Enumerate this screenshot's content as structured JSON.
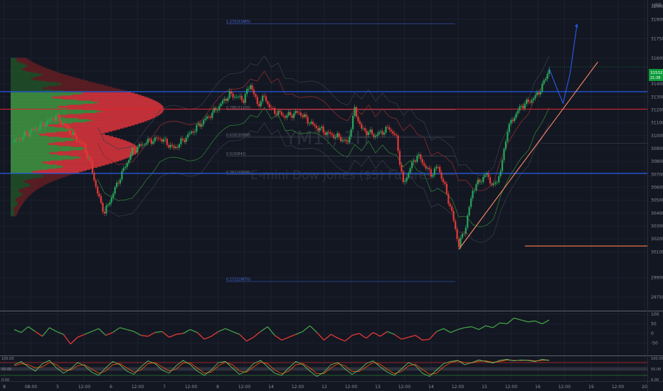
{
  "chart_data": {
    "type": "line",
    "title": "",
    "currency": "USD",
    "watermark": {
      "symbol": "YM1!, 1H",
      "name": "E-mini Dow Jones ($5) Futures"
    },
    "last_price": {
      "value": "31532",
      "countdown": "21:38"
    },
    "price_axis": {
      "range": [
        29650,
        32050
      ],
      "ticks": [
        {
          "v": 29750,
          "label": "29750"
        },
        {
          "v": 29900,
          "label": "29900"
        },
        {
          "v": 30100,
          "label": "30100"
        },
        {
          "v": 30200,
          "label": "30200"
        },
        {
          "v": 30300,
          "label": "30300"
        },
        {
          "v": 30400,
          "label": "30400"
        },
        {
          "v": 30500,
          "label": "30500"
        },
        {
          "v": 30600,
          "label": "30600"
        },
        {
          "v": 30700,
          "label": "30700"
        },
        {
          "v": 30800,
          "label": "30800"
        },
        {
          "v": 30900,
          "label": "30900"
        },
        {
          "v": 31000,
          "label": "31000"
        },
        {
          "v": 31100,
          "label": "31100"
        },
        {
          "v": 31200,
          "label": "31200"
        },
        {
          "v": 31300,
          "label": "31300"
        },
        {
          "v": 31400,
          "label": "31400"
        },
        {
          "v": 31500,
          "label": "31500"
        },
        {
          "v": 31600,
          "label": "31600"
        },
        {
          "v": 31750,
          "label": "31750"
        },
        {
          "v": 31900,
          "label": "31900"
        },
        {
          "v": 32000,
          "label": "32000"
        }
      ]
    },
    "time_axis": [
      "8",
      "08:00",
      "5",
      "12:00",
      "6",
      "12:00",
      "7",
      "12:00",
      "8",
      "12:00",
      "14",
      "12:00",
      "12",
      "12:00",
      "13",
      "12:00",
      "14",
      "12:00",
      "15",
      "12:00",
      "16",
      "12:00",
      "19",
      "12:00",
      "20"
    ],
    "fib_levels": [
      {
        "label": "1.272(31865)",
        "price": 31865
      },
      {
        "label": "0.786(31200)",
        "price": 31200
      },
      {
        "label": "0.618(30988)",
        "price": 30988
      },
      {
        "label": "0.5(30842)",
        "price": 30842
      },
      {
        "label": "0.382(30698)",
        "price": 30698
      },
      {
        "label": "0.272(29870)",
        "price": 29870
      }
    ],
    "horizontal_levels": [
      {
        "price": 31340,
        "color": "#2962ff"
      },
      {
        "price": 31205,
        "color": "#e0202a"
      },
      {
        "price": 30708,
        "color": "#2962ff"
      },
      {
        "price": 30940,
        "color": "#363a45"
      },
      {
        "price": 30145,
        "color": "#ff7a45"
      }
    ],
    "price_series": [
      {
        "x": 0,
        "y": 30950
      },
      {
        "x": 2,
        "y": 31020
      },
      {
        "x": 4,
        "y": 31080
      },
      {
        "x": 6,
        "y": 31150
      },
      {
        "x": 8,
        "y": 31030
      },
      {
        "x": 10,
        "y": 30920
      },
      {
        "x": 11,
        "y": 30780
      },
      {
        "x": 12,
        "y": 30550
      },
      {
        "x": 13,
        "y": 30400
      },
      {
        "x": 15,
        "y": 30650
      },
      {
        "x": 17,
        "y": 30880
      },
      {
        "x": 19,
        "y": 30950
      },
      {
        "x": 21,
        "y": 30980
      },
      {
        "x": 23,
        "y": 30900
      },
      {
        "x": 25,
        "y": 31000
      },
      {
        "x": 27,
        "y": 31100
      },
      {
        "x": 29,
        "y": 31200
      },
      {
        "x": 31,
        "y": 31320
      },
      {
        "x": 33,
        "y": 31280
      },
      {
        "x": 34,
        "y": 31400
      },
      {
        "x": 35,
        "y": 31240
      },
      {
        "x": 36,
        "y": 31300
      },
      {
        "x": 37,
        "y": 31200
      },
      {
        "x": 39,
        "y": 31150
      },
      {
        "x": 41,
        "y": 31180
      },
      {
        "x": 43,
        "y": 31080
      },
      {
        "x": 45,
        "y": 31020
      },
      {
        "x": 47,
        "y": 30980
      },
      {
        "x": 48,
        "y": 30940
      },
      {
        "x": 49,
        "y": 31200
      },
      {
        "x": 50,
        "y": 31050
      },
      {
        "x": 52,
        "y": 31000
      },
      {
        "x": 54,
        "y": 31060
      },
      {
        "x": 55,
        "y": 30980
      },
      {
        "x": 56,
        "y": 30620
      },
      {
        "x": 57,
        "y": 30750
      },
      {
        "x": 58,
        "y": 30850
      },
      {
        "x": 60,
        "y": 30700
      },
      {
        "x": 61,
        "y": 30760
      },
      {
        "x": 62,
        "y": 30600
      },
      {
        "x": 63,
        "y": 30400
      },
      {
        "x": 64,
        "y": 30150
      },
      {
        "x": 65,
        "y": 30300
      },
      {
        "x": 66,
        "y": 30580
      },
      {
        "x": 67,
        "y": 30650
      },
      {
        "x": 68,
        "y": 30700
      },
      {
        "x": 69,
        "y": 30600
      },
      {
        "x": 70,
        "y": 30720
      },
      {
        "x": 71,
        "y": 31050
      },
      {
        "x": 72,
        "y": 31150
      },
      {
        "x": 73,
        "y": 31230
      },
      {
        "x": 74,
        "y": 31260
      },
      {
        "x": 75,
        "y": 31300
      },
      {
        "x": 76,
        "y": 31380
      },
      {
        "x": 77,
        "y": 31520
      }
    ],
    "projection": [
      {
        "x": 77,
        "y": 31520
      },
      {
        "x": 78,
        "y": 31380
      },
      {
        "x": 79,
        "y": 31250
      },
      {
        "x": 80,
        "y": 31480
      },
      {
        "x": 81,
        "y": 31860
      }
    ],
    "trendline": [
      {
        "x": 64,
        "y": 30120
      },
      {
        "x": 84,
        "y": 31570
      }
    ],
    "rsi": {
      "range": [
        -100,
        100
      ],
      "ticks": [
        {
          "v": 100,
          "label": "100"
        },
        {
          "v": 50,
          "label": "50"
        },
        {
          "v": 0,
          "label": "0"
        },
        {
          "v": -50,
          "label": "-50"
        }
      ],
      "values": [
        20,
        5,
        35,
        10,
        -15,
        30,
        10,
        -5,
        -55,
        -20,
        -5,
        10,
        25,
        -10,
        5,
        30,
        20,
        10,
        -10,
        -15,
        5,
        10,
        -20,
        -5,
        0,
        20,
        5,
        -30,
        -15,
        10,
        25,
        10,
        -5,
        -40,
        -20,
        10,
        35,
        -10,
        -35,
        -20,
        -5,
        10,
        40,
        5,
        -35,
        -5,
        -25,
        -40,
        -10,
        0,
        -25,
        5,
        -15,
        10,
        -5,
        -30,
        -20,
        -10,
        -35,
        -30,
        10,
        25,
        5,
        20,
        30,
        35,
        20,
        40,
        30,
        55,
        50,
        80,
        70,
        60,
        65,
        50,
        70
      ]
    },
    "stoch": {
      "range": [
        0,
        100
      ],
      "ticks": [
        {
          "v": 100,
          "label": "100.00"
        },
        {
          "v": 50,
          "label": "50.00"
        },
        {
          "v": 0,
          "label": "0.00"
        }
      ],
      "k": [
        70,
        85,
        60,
        40,
        75,
        90,
        55,
        30,
        50,
        80,
        65,
        35,
        20,
        55,
        85,
        70,
        40,
        25,
        60,
        88,
        75,
        45,
        30,
        65,
        90,
        70,
        40,
        20,
        45,
        80,
        85,
        55,
        25,
        40,
        75,
        90,
        60,
        30,
        20,
        55,
        85,
        70,
        40,
        15,
        35,
        70,
        80,
        50,
        25,
        45,
        75,
        88,
        60,
        35,
        20,
        50,
        80,
        65,
        30,
        15,
        45,
        75,
        85,
        90,
        70,
        80,
        92,
        85,
        78,
        90,
        95,
        88,
        92,
        90,
        85,
        95,
        90
      ],
      "d": [
        65,
        75,
        70,
        55,
        60,
        80,
        70,
        45,
        45,
        65,
        70,
        50,
        30,
        40,
        70,
        75,
        55,
        35,
        45,
        75,
        80,
        60,
        40,
        50,
        78,
        78,
        55,
        30,
        35,
        65,
        82,
        70,
        40,
        35,
        60,
        82,
        75,
        45,
        28,
        40,
        70,
        75,
        55,
        28,
        28,
        55,
        75,
        65,
        38,
        38,
        60,
        80,
        72,
        48,
        28,
        38,
        65,
        72,
        48,
        25,
        30,
        60,
        80,
        88,
        80,
        78,
        86,
        88,
        82,
        85,
        92,
        90,
        90,
        91,
        88,
        90,
        92
      ]
    }
  }
}
